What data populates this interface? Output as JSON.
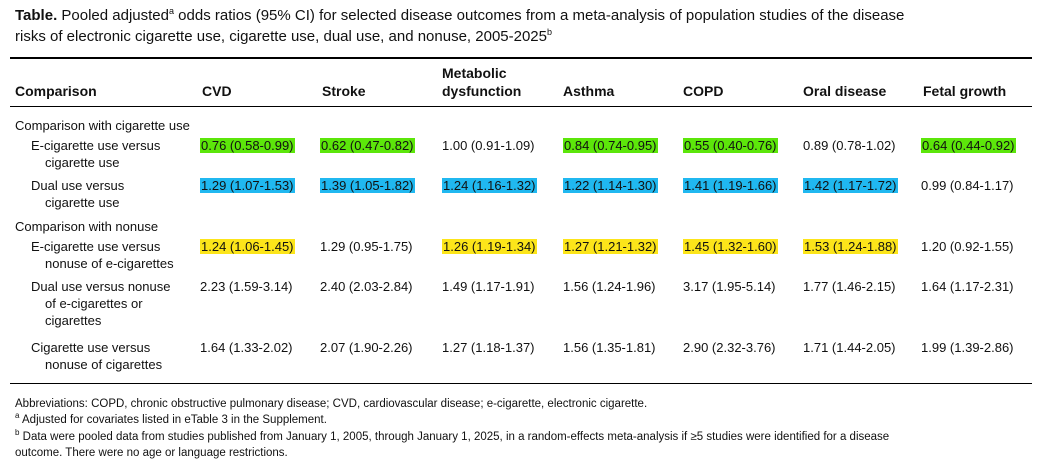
{
  "title": {
    "lead": "Table.",
    "text1": " Pooled adjusted",
    "sup1": "a",
    "text2": " odds ratios (95% CI) for selected disease outcomes from a meta-analysis of population studies of the disease",
    "text3": "risks of electronic cigarette use, cigarette use, dual use, and nonuse, 2005-2025",
    "sup2": "b"
  },
  "headers": {
    "comparison": "Comparison",
    "cvd": "CVD",
    "stroke": "Stroke",
    "metabolic_l1": "Metabolic",
    "metabolic_l2": "dysfunction",
    "asthma": "Asthma",
    "copd": "COPD",
    "oral": "Oral disease",
    "fetal": "Fetal growth"
  },
  "sections": {
    "s1": "Comparison with cigarette use",
    "s2": "Comparison with nonuse"
  },
  "rows": [
    {
      "label": [
        "E-cigarette use versus",
        "cigarette use"
      ],
      "values": [
        "0.76 (0.58-0.99)",
        "0.62 (0.47-0.82)",
        "1.00 (0.91-1.09)",
        "0.84 (0.74-0.95)",
        "0.55 (0.40-0.76)",
        "0.89 (0.78-1.02)",
        "0.64 (0.44-0.92)"
      ],
      "highlight": [
        "#5ce60a",
        "#5ce60a",
        "",
        "#5ce60a",
        "#5ce60a",
        "",
        "#5ce60a"
      ]
    },
    {
      "label": [
        "Dual use versus",
        "cigarette use"
      ],
      "values": [
        "1.29 (1.07-1.53)",
        "1.39 (1.05-1.82)",
        "1.24 (1.16-1.32)",
        "1.22 (1.14-1.30)",
        "1.41 (1.19-1.66)",
        "1.42 (1.17-1.72)",
        "0.99 (0.84-1.17)"
      ],
      "highlight": [
        "#20b8f0",
        "#20b8f0",
        "#20b8f0",
        "#20b8f0",
        "#20b8f0",
        "#20b8f0",
        ""
      ]
    },
    {
      "label": [
        "E-cigarette use versus",
        "nonuse of e-cigarettes"
      ],
      "values": [
        "1.24 (1.06-1.45)",
        "1.29 (0.95-1.75)",
        "1.26 (1.19-1.34)",
        "1.27 (1.21-1.32)",
        "1.45 (1.32-1.60)",
        "1.53 (1.24-1.88)",
        "1.20 (0.92-1.55)"
      ],
      "highlight": [
        "#fce51a",
        "",
        "#fce51a",
        "#fce51a",
        "#fce51a",
        "#fce51a",
        ""
      ]
    },
    {
      "label": [
        "Dual use versus nonuse",
        "of e-cigarettes or",
        "cigarettes"
      ],
      "values": [
        "2.23 (1.59-3.14)",
        "2.40 (2.03-2.84)",
        "1.49 (1.17-1.91)",
        "1.56 (1.24-1.96)",
        "3.17 (1.95-5.14)",
        "1.77 (1.46-2.15)",
        "1.64 (1.17-2.31)"
      ],
      "highlight": [
        "",
        "",
        "",
        "",
        "",
        "",
        ""
      ]
    },
    {
      "label": [
        "Cigarette use versus",
        "nonuse of cigarettes"
      ],
      "values": [
        "1.64 (1.33-2.02)",
        "2.07 (1.90-2.26)",
        "1.27 (1.18-1.37)",
        "1.56 (1.35-1.81)",
        "2.90 (2.32-3.76)",
        "1.71 (1.44-2.05)",
        "1.99 (1.39-2.86)"
      ],
      "highlight": [
        "",
        "",
        "",
        "",
        "",
        "",
        ""
      ]
    }
  ],
  "footnotes": {
    "abbrev": "Abbreviations: COPD, chronic obstructive pulmonary disease; CVD, cardiovascular disease; e-cigarette, electronic cigarette.",
    "a_mark": "a",
    "a_text": " Adjusted for covariates listed in eTable 3 in the Supplement.",
    "b_mark": "b",
    "b_text1": " Data were pooled data from studies published from January 1, 2005, through January 1, 2025, in a random-effects meta-analysis if ≥5 studies were identified for a disease",
    "b_text2": "outcome. There were no age or language restrictions."
  }
}
